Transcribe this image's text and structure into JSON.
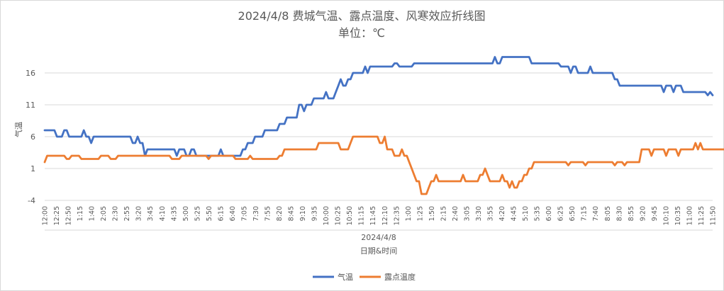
{
  "chart_data": {
    "type": "line",
    "title": "2024/4/8 费城气温、露点温度、风寒效应折线图",
    "subtitle": "单位：℃",
    "xlabel": "日期&时间",
    "xgroup_label": "2024/4/8",
    "ylabel": "气温",
    "ylim": [
      -4,
      21
    ],
    "yticks": [
      -4,
      1,
      6,
      11,
      16
    ],
    "grid": "horizontal",
    "legend_position": "bottom",
    "x_start": "12:00",
    "x_step_minutes": 5,
    "xticks": [
      "12:00",
      "12:25",
      "12:50",
      "1:15",
      "1:40",
      "2:05",
      "2:30",
      "2:55",
      "3:20",
      "3:45",
      "4:10",
      "4:35",
      "5:00",
      "5:25",
      "5:50",
      "6:15",
      "6:40",
      "7:05",
      "7:30",
      "7:55",
      "8:20",
      "8:45",
      "9:10",
      "9:35",
      "10:00",
      "10:25",
      "10:50",
      "11:15",
      "11:45",
      "12:10",
      "12:35",
      "1:00",
      "1:25",
      "1:50",
      "2:15",
      "2:40",
      "3:05",
      "3:30",
      "3:55",
      "4:20",
      "4:45",
      "5:10",
      "5:35",
      "6:00",
      "6:25",
      "6:50",
      "7:15",
      "7:40",
      "8:05",
      "8:30",
      "8:55",
      "9:20",
      "9:45",
      "10:10",
      "10:35",
      "11:00",
      "11:25",
      "11:50"
    ],
    "series": [
      {
        "name": "气温",
        "color": "#4472c4",
        "values": [
          7,
          7,
          7,
          7,
          7,
          6,
          6,
          6,
          7,
          7,
          6,
          6,
          6,
          6,
          6,
          6,
          7,
          6,
          6,
          5,
          6,
          6,
          6,
          6,
          6,
          6,
          6,
          6,
          6,
          6,
          6,
          6,
          6,
          6,
          6,
          6,
          5,
          5,
          6,
          5,
          5,
          3,
          4,
          4,
          4,
          4,
          4,
          4,
          4,
          4,
          4,
          4,
          4,
          4,
          3,
          4,
          4,
          4,
          3,
          3,
          4,
          4,
          3,
          3,
          3,
          3,
          3,
          3,
          3,
          3,
          3,
          3,
          4,
          3,
          3,
          3,
          3,
          3,
          3,
          3,
          3,
          4,
          4,
          5,
          5,
          5,
          6,
          6,
          6,
          6,
          7,
          7,
          7,
          7,
          7,
          7,
          8,
          8,
          8,
          9,
          9,
          9,
          9,
          9,
          11,
          11,
          10,
          11,
          11,
          11,
          12,
          12,
          12,
          12,
          12,
          13,
          12,
          12,
          12,
          13,
          14,
          15,
          14,
          14,
          15,
          15,
          16,
          16,
          16,
          16,
          16,
          17,
          16,
          17,
          17,
          17,
          17,
          17,
          17,
          17,
          17,
          17,
          17,
          17.5,
          17.5,
          17,
          17,
          17,
          17,
          17,
          17,
          17.5,
          17.5,
          17.5,
          17.5,
          17.5,
          17.5,
          17.5,
          17.5,
          17.5,
          17.5,
          17.5,
          17.5,
          17.5,
          17.5,
          17.5,
          17.5,
          17.5,
          17.5,
          17.5,
          17.5,
          17.5,
          17.5,
          17.5,
          17.5,
          17.5,
          17.5,
          17.5,
          17.5,
          17.5,
          17.5,
          17.5,
          17.5,
          17.5,
          18.5,
          17.5,
          17.5,
          18.5,
          18.5,
          18.5,
          18.5,
          18.5,
          18.5,
          18.5,
          18.5,
          18.5,
          18.5,
          18.5,
          18.5,
          17.5,
          17.5,
          17.5,
          17.5,
          17.5,
          17.5,
          17.5,
          17.5,
          17.5,
          17.5,
          17.5,
          17.5,
          17,
          17,
          17,
          17,
          16,
          17,
          17,
          16,
          16,
          16,
          16,
          16,
          17,
          16,
          16,
          16,
          16,
          16,
          16,
          16,
          16,
          16,
          15,
          15,
          14,
          14,
          14,
          14,
          14,
          14,
          14,
          14,
          14,
          14,
          14,
          14,
          14,
          14,
          14,
          14,
          14,
          14,
          13,
          14,
          14,
          14,
          13,
          14,
          14,
          14,
          13,
          13,
          13,
          13,
          13,
          13,
          13,
          13,
          13,
          13,
          12.5,
          13,
          12.5
        ],
        "values_note": ""
      },
      {
        "name": "露点温度",
        "color": "#ed7d31",
        "values": [
          2,
          3,
          3,
          3,
          3,
          3,
          3,
          3,
          3,
          2.5,
          2.5,
          3,
          3,
          3,
          3,
          2.5,
          2.5,
          2.5,
          2.5,
          2.5,
          2.5,
          2.5,
          2.5,
          3,
          3,
          3,
          3,
          2.5,
          2.5,
          2.5,
          3,
          3,
          3,
          3,
          3,
          3,
          3,
          3,
          3,
          3,
          3,
          3,
          3,
          3,
          3,
          3,
          3,
          3,
          3,
          3,
          3,
          3,
          2.5,
          2.5,
          2.5,
          2.5,
          3,
          3,
          3,
          3,
          3,
          3,
          3,
          3,
          3,
          3,
          3,
          2.5,
          3,
          3,
          3,
          3,
          3,
          3,
          3,
          3,
          3,
          3,
          2.5,
          2.5,
          2.5,
          2.5,
          2.5,
          2.5,
          3,
          2.5,
          2.5,
          2.5,
          2.5,
          2.5,
          2.5,
          2.5,
          2.5,
          2.5,
          2.5,
          2.5,
          3,
          3,
          4,
          4,
          4,
          4,
          4,
          4,
          4,
          4,
          4,
          4,
          4,
          4,
          4,
          4,
          5,
          5,
          5,
          5,
          5,
          5,
          5,
          5,
          5,
          4,
          4,
          4,
          4,
          5,
          6,
          6,
          6,
          6,
          6,
          6,
          6,
          6,
          6,
          6,
          6,
          5,
          5,
          6,
          4,
          4,
          4,
          3,
          3,
          3,
          4,
          3,
          3,
          2,
          1,
          0,
          -1,
          -1,
          -3,
          -3,
          -3,
          -2,
          -1,
          -1,
          0,
          -1,
          -1,
          -1,
          -1,
          -1,
          -1,
          -1,
          -1,
          -1,
          -1,
          0,
          -1,
          -1,
          -1,
          -1,
          -1,
          -1,
          0,
          0,
          1,
          0,
          -1,
          -1,
          -1,
          -1,
          -1,
          0,
          -1,
          -1,
          -2,
          -1,
          -2,
          -2,
          -1,
          -1,
          0,
          0,
          1,
          1,
          2,
          2,
          2,
          2,
          2,
          2,
          2,
          2,
          2,
          2,
          2,
          2,
          2,
          2,
          1.5,
          2,
          2,
          2,
          2,
          2,
          2,
          1.5,
          2,
          2,
          2,
          2,
          2,
          2,
          2,
          2,
          2,
          2,
          2,
          1.5,
          2,
          2,
          2,
          1.5,
          2,
          2,
          2,
          2,
          2,
          2,
          4,
          4,
          4,
          4,
          3,
          4,
          4,
          4,
          4,
          4,
          3,
          4,
          4,
          4,
          4,
          3,
          4,
          4,
          4,
          4,
          4,
          4,
          5,
          4,
          5,
          4,
          4,
          4,
          4,
          4,
          4,
          4,
          4,
          4,
          4,
          4,
          4,
          4,
          4,
          4,
          4,
          4,
          4,
          4,
          4,
          4,
          4,
          4,
          4,
          4,
          4,
          4,
          5,
          5,
          5,
          5,
          5,
          5
        ]
      }
    ]
  }
}
